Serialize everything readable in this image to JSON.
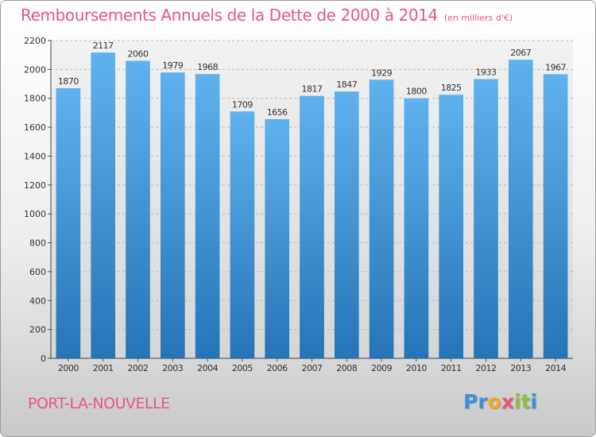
{
  "chart_data": {
    "type": "bar",
    "title": "Remboursements Annuels de la Dette de 2000 à 2014",
    "unit_note": "(en milliers d'€)",
    "categories": [
      "2000",
      "2001",
      "2002",
      "2003",
      "2004",
      "2005",
      "2006",
      "2007",
      "2008",
      "2009",
      "2010",
      "2011",
      "2012",
      "2013",
      "2014"
    ],
    "values": [
      1870,
      2117,
      2060,
      1979,
      1968,
      1709,
      1656,
      1817,
      1847,
      1929,
      1800,
      1825,
      1933,
      2067,
      1967
    ],
    "y_ticks": [
      "0",
      "200",
      "400",
      "600",
      "800",
      "1000",
      "1200",
      "1400",
      "1600",
      "1800",
      "2000",
      "2200"
    ],
    "ylim": [
      0,
      2200
    ],
    "xlabel": "",
    "ylabel": "",
    "grid": true,
    "bar_color": "#3d95d8"
  },
  "commune": "PORT-LA-NOUVELLE",
  "logo": {
    "letters": [
      "P",
      "r",
      "o",
      "x",
      "i",
      "t",
      "i"
    ],
    "colors": [
      "#3d8fd9",
      "#3d8fd9",
      "#f2a81d",
      "#e8567f",
      "#8cbf3f",
      "#8cbf3f",
      "#3d8fd9"
    ]
  }
}
